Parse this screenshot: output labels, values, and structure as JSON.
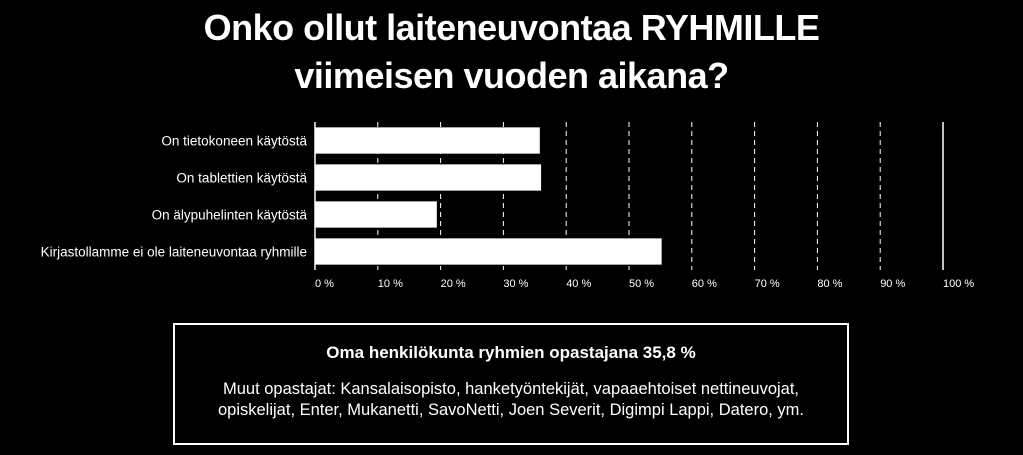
{
  "title": {
    "line1": "Onko ollut laiteneuvontaa RYHMILLE",
    "line2": "viimeisen vuoden aikana?"
  },
  "chart_data": {
    "type": "bar",
    "orientation": "horizontal",
    "categories": [
      "On tietokoneen käytöstä",
      "On tablettien käytöstä",
      "On älypuhelinten käytöstä",
      "Kirjastollamme ei ole laiteneuvontaa ryhmille"
    ],
    "values": [
      35.8,
      36.0,
      19.4,
      55.2
    ],
    "xlim": [
      0,
      100
    ],
    "xticks": [
      "0 %",
      "10 %",
      "20 %",
      "30 %",
      "40 %",
      "50 %",
      "60 %",
      "70 %",
      "80 %",
      "90 %",
      "100 %"
    ],
    "grid": "vertical dashed",
    "colors": {
      "bar": "#ffffff",
      "background": "#000000",
      "grid": "#ffffff"
    }
  },
  "info": {
    "heading": "Oma henkilökunta ryhmien opastajana 35,8 %",
    "text": "Muut opastajat: Kansalaisopisto, hanketyöntekijät, vapaaehtoiset nettineuvojat, opiskelijat, Enter, Mukanetti, SavoNetti, Joen Severit, Digimpi Lappi, Datero, ym."
  }
}
